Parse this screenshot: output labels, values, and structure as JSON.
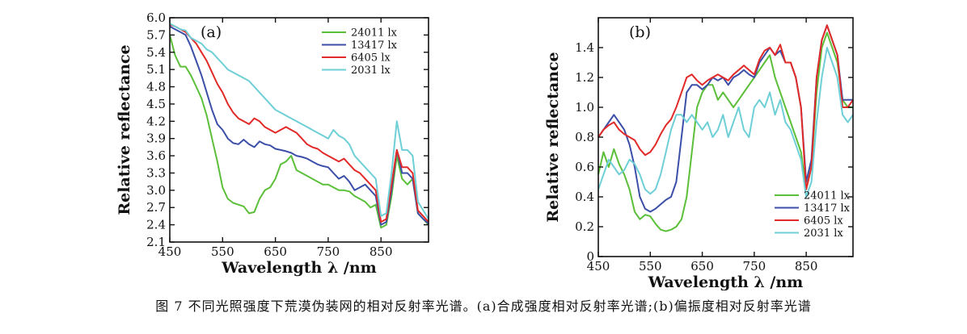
{
  "caption": "图 7  不同光照强度下荒漠伪装网的相对反射率光谱。(a)合成强度相对反射率光谱;(b)偏振度相对反射率光谱",
  "chart_data": [
    {
      "type": "line",
      "panel_label": "(a)",
      "xlabel": "Wavelength λ /nm",
      "ylabel": "Relative reflectance",
      "xlim": [
        450,
        940
      ],
      "ylim": [
        2.1,
        6.0
      ],
      "xticks": [
        450,
        550,
        650,
        750,
        850
      ],
      "yticks": [
        2.1,
        2.4,
        2.7,
        3.0,
        3.3,
        3.6,
        3.9,
        4.2,
        4.5,
        4.8,
        5.1,
        5.4,
        5.7,
        6.0
      ],
      "ytick_labels": [
        "2.1",
        "2.4",
        "2.7",
        "3.0",
        "3.3",
        "3.6",
        "3.9",
        "4.2",
        "4.5",
        "4.8",
        "5.1",
        "5.4",
        "5.7",
        "6.0"
      ],
      "legend_position": "top-right",
      "series": [
        {
          "name": "24011 lx",
          "color": "#5cbf3a",
          "x": [
            450,
            460,
            470,
            480,
            490,
            500,
            510,
            520,
            530,
            540,
            550,
            560,
            570,
            580,
            590,
            600,
            610,
            620,
            630,
            640,
            650,
            660,
            670,
            680,
            690,
            700,
            710,
            720,
            730,
            740,
            750,
            760,
            770,
            780,
            790,
            800,
            810,
            820,
            830,
            840,
            850,
            860,
            870,
            880,
            890,
            900,
            910,
            920,
            930,
            940
          ],
          "y": [
            5.7,
            5.35,
            5.15,
            5.15,
            5.0,
            4.8,
            4.6,
            4.3,
            3.9,
            3.5,
            3.05,
            2.85,
            2.78,
            2.75,
            2.72,
            2.6,
            2.62,
            2.85,
            3.0,
            3.05,
            3.2,
            3.45,
            3.5,
            3.6,
            3.35,
            3.3,
            3.25,
            3.2,
            3.15,
            3.1,
            3.1,
            3.05,
            3.0,
            3.0,
            2.98,
            2.9,
            2.85,
            2.8,
            2.7,
            2.75,
            2.35,
            2.4,
            2.9,
            3.6,
            3.2,
            3.1,
            3.2,
            2.6,
            2.5,
            2.4
          ]
        },
        {
          "name": "13417 lx",
          "color": "#3c4fa8",
          "x": [
            450,
            460,
            470,
            480,
            490,
            500,
            510,
            520,
            530,
            540,
            550,
            560,
            570,
            580,
            590,
            600,
            610,
            620,
            630,
            640,
            650,
            660,
            670,
            680,
            690,
            700,
            710,
            720,
            730,
            740,
            750,
            760,
            770,
            780,
            790,
            800,
            810,
            820,
            830,
            840,
            850,
            860,
            870,
            880,
            890,
            900,
            910,
            920,
            930,
            940
          ],
          "y": [
            5.85,
            5.8,
            5.75,
            5.7,
            5.5,
            5.25,
            5.0,
            4.7,
            4.4,
            4.15,
            4.05,
            3.9,
            3.82,
            3.8,
            3.88,
            3.8,
            3.75,
            3.85,
            3.8,
            3.78,
            3.72,
            3.7,
            3.68,
            3.65,
            3.6,
            3.58,
            3.55,
            3.5,
            3.45,
            3.42,
            3.4,
            3.3,
            3.2,
            3.25,
            3.15,
            3.0,
            3.05,
            3.1,
            3.0,
            2.9,
            2.4,
            2.45,
            3.0,
            3.7,
            3.3,
            3.3,
            3.2,
            2.6,
            2.5,
            2.42
          ]
        },
        {
          "name": "6405 lx",
          "color": "#e22a28",
          "x": [
            450,
            460,
            470,
            480,
            490,
            500,
            510,
            520,
            530,
            540,
            550,
            560,
            570,
            580,
            590,
            600,
            610,
            620,
            630,
            640,
            650,
            660,
            670,
            680,
            690,
            700,
            710,
            720,
            730,
            740,
            750,
            760,
            770,
            780,
            790,
            800,
            810,
            820,
            830,
            840,
            850,
            860,
            870,
            880,
            890,
            900,
            910,
            920,
            930,
            940
          ],
          "y": [
            5.88,
            5.85,
            5.8,
            5.75,
            5.65,
            5.55,
            5.4,
            5.25,
            5.05,
            4.85,
            4.7,
            4.5,
            4.35,
            4.25,
            4.2,
            4.15,
            4.25,
            4.2,
            4.1,
            4.05,
            4.0,
            4.05,
            4.1,
            4.05,
            4.0,
            3.9,
            3.8,
            3.75,
            3.72,
            3.65,
            3.6,
            3.55,
            3.5,
            3.55,
            3.45,
            3.35,
            3.3,
            3.2,
            3.1,
            3.0,
            2.45,
            2.5,
            3.1,
            3.7,
            3.4,
            3.4,
            3.3,
            2.65,
            2.55,
            2.45
          ]
        },
        {
          "name": "2031 lx",
          "color": "#6ecfd6",
          "x": [
            450,
            460,
            470,
            480,
            490,
            500,
            510,
            520,
            530,
            540,
            550,
            560,
            570,
            580,
            590,
            600,
            610,
            620,
            630,
            640,
            650,
            660,
            670,
            680,
            690,
            700,
            710,
            720,
            730,
            740,
            750,
            760,
            770,
            780,
            790,
            800,
            810,
            820,
            830,
            840,
            850,
            860,
            870,
            880,
            890,
            900,
            910,
            920,
            930,
            940
          ],
          "y": [
            5.9,
            5.85,
            5.8,
            5.78,
            5.65,
            5.6,
            5.55,
            5.45,
            5.4,
            5.3,
            5.2,
            5.1,
            5.05,
            5.0,
            4.95,
            4.9,
            4.8,
            4.7,
            4.6,
            4.5,
            4.4,
            4.35,
            4.3,
            4.25,
            4.2,
            4.15,
            4.1,
            4.05,
            4.0,
            3.95,
            3.9,
            4.05,
            3.95,
            3.9,
            3.8,
            3.6,
            3.5,
            3.4,
            3.3,
            3.2,
            2.55,
            2.6,
            3.3,
            4.2,
            3.7,
            3.7,
            3.6,
            2.8,
            2.65,
            2.5
          ]
        }
      ]
    },
    {
      "type": "line",
      "panel_label": "(b)",
      "xlabel": "Wavelength λ /nm",
      "ylabel": "Relative reflectance",
      "xlim": [
        450,
        940
      ],
      "ylim": [
        0,
        1.6
      ],
      "xticks": [
        450,
        550,
        650,
        750,
        850
      ],
      "yticks": [
        0,
        0.2,
        0.4,
        0.6,
        0.8,
        1.0,
        1.2,
        1.4
      ],
      "ytick_labels": [
        "0",
        "0.2",
        "0.4",
        "0.6",
        "0.8",
        "1.0",
        "1.2",
        "1.4"
      ],
      "legend_position": "bottom-right",
      "series": [
        {
          "name": "24011 lx",
          "color": "#5cbf3a",
          "x": [
            450,
            460,
            470,
            480,
            490,
            500,
            510,
            520,
            530,
            540,
            550,
            560,
            570,
            580,
            590,
            600,
            610,
            620,
            630,
            640,
            650,
            660,
            670,
            680,
            690,
            700,
            710,
            720,
            730,
            740,
            750,
            760,
            770,
            780,
            790,
            800,
            810,
            820,
            830,
            840,
            850,
            860,
            870,
            880,
            890,
            900,
            910,
            920,
            930,
            940
          ],
          "y": [
            0.55,
            0.7,
            0.6,
            0.72,
            0.62,
            0.55,
            0.45,
            0.3,
            0.25,
            0.28,
            0.27,
            0.22,
            0.18,
            0.17,
            0.18,
            0.2,
            0.25,
            0.4,
            0.7,
            1.0,
            1.1,
            1.15,
            1.15,
            1.05,
            1.1,
            1.05,
            1.0,
            1.05,
            1.1,
            1.15,
            1.2,
            1.25,
            1.3,
            1.35,
            1.2,
            1.1,
            1.0,
            0.9,
            0.8,
            0.7,
            0.45,
            0.6,
            1.1,
            1.4,
            1.5,
            1.4,
            1.3,
            1.05,
            1.0,
            1.0
          ]
        },
        {
          "name": "13417 lx",
          "color": "#3c4fa8",
          "x": [
            450,
            460,
            470,
            480,
            490,
            500,
            510,
            520,
            530,
            540,
            550,
            560,
            570,
            580,
            590,
            600,
            610,
            620,
            630,
            640,
            650,
            660,
            670,
            680,
            690,
            700,
            710,
            720,
            730,
            740,
            750,
            760,
            770,
            780,
            790,
            800,
            810,
            820,
            830,
            840,
            850,
            860,
            870,
            880,
            890,
            900,
            910,
            920,
            930,
            940
          ],
          "y": [
            0.8,
            0.85,
            0.9,
            0.95,
            0.9,
            0.85,
            0.75,
            0.6,
            0.4,
            0.32,
            0.3,
            0.32,
            0.35,
            0.38,
            0.4,
            0.5,
            0.8,
            1.1,
            1.15,
            1.15,
            1.12,
            1.15,
            1.2,
            1.18,
            1.2,
            1.15,
            1.2,
            1.22,
            1.25,
            1.22,
            1.2,
            1.3,
            1.35,
            1.4,
            1.35,
            1.38,
            1.3,
            1.3,
            1.2,
            1.0,
            0.5,
            0.65,
            1.2,
            1.45,
            1.55,
            1.45,
            1.35,
            1.05,
            1.05,
            1.05
          ]
        },
        {
          "name": "6405 lx",
          "color": "#e22a28",
          "x": [
            450,
            460,
            470,
            480,
            490,
            500,
            510,
            520,
            530,
            540,
            550,
            560,
            570,
            580,
            590,
            600,
            610,
            620,
            630,
            640,
            650,
            660,
            670,
            680,
            690,
            700,
            710,
            720,
            730,
            740,
            750,
            760,
            770,
            780,
            790,
            800,
            810,
            820,
            830,
            840,
            850,
            860,
            870,
            880,
            890,
            900,
            910,
            920,
            930,
            940
          ],
          "y": [
            0.8,
            0.85,
            0.88,
            0.9,
            0.85,
            0.82,
            0.8,
            0.78,
            0.72,
            0.68,
            0.7,
            0.75,
            0.82,
            0.88,
            0.92,
            1.0,
            1.1,
            1.2,
            1.22,
            1.18,
            1.15,
            1.18,
            1.2,
            1.22,
            1.2,
            1.18,
            1.22,
            1.25,
            1.28,
            1.25,
            1.22,
            1.32,
            1.38,
            1.4,
            1.35,
            1.42,
            1.3,
            1.3,
            1.2,
            1.0,
            0.45,
            0.6,
            1.2,
            1.45,
            1.55,
            1.45,
            1.35,
            1.0,
            1.0,
            1.05
          ]
        },
        {
          "name": "2031 lx",
          "color": "#6ecfd6",
          "x": [
            450,
            460,
            470,
            480,
            490,
            500,
            510,
            520,
            530,
            540,
            550,
            560,
            570,
            580,
            590,
            600,
            610,
            620,
            630,
            640,
            650,
            660,
            670,
            680,
            690,
            700,
            710,
            720,
            730,
            740,
            750,
            760,
            770,
            780,
            790,
            800,
            810,
            820,
            830,
            840,
            850,
            860,
            870,
            880,
            890,
            900,
            910,
            920,
            930,
            940
          ],
          "y": [
            0.45,
            0.55,
            0.65,
            0.6,
            0.55,
            0.58,
            0.65,
            0.62,
            0.55,
            0.45,
            0.42,
            0.45,
            0.55,
            0.7,
            0.85,
            0.95,
            0.95,
            0.9,
            0.95,
            0.9,
            0.85,
            0.9,
            0.8,
            0.85,
            0.95,
            0.8,
            0.9,
            1.0,
            0.85,
            0.8,
            1.0,
            1.05,
            1.0,
            1.1,
            0.95,
            1.05,
            0.9,
            0.85,
            0.75,
            0.65,
            0.4,
            0.5,
            0.9,
            1.2,
            1.4,
            1.3,
            1.2,
            0.95,
            0.9,
            0.95
          ]
        }
      ]
    }
  ]
}
